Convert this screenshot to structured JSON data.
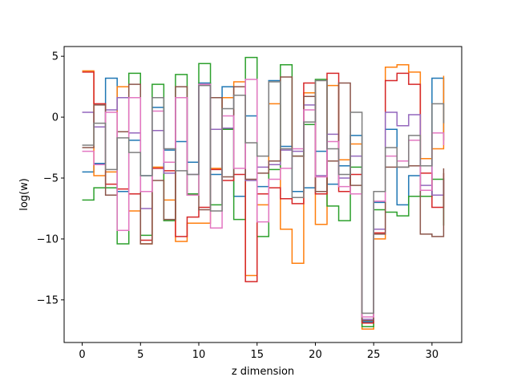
{
  "chart_data": {
    "type": "line",
    "step": "post",
    "title": "",
    "xlabel": "z dimension",
    "ylabel": "log(w)",
    "xlim": [
      -1.55,
      32.55
    ],
    "ylim": [
      -18.5,
      5.8
    ],
    "xticks": [
      0,
      5,
      10,
      15,
      20,
      25,
      30
    ],
    "yticks": [
      -15,
      -10,
      -5,
      0,
      5
    ],
    "grid": false,
    "legend": "none",
    "x": [
      0,
      1,
      2,
      3,
      4,
      5,
      6,
      7,
      8,
      9,
      10,
      11,
      12,
      13,
      14,
      15,
      16,
      17,
      18,
      19,
      20,
      21,
      22,
      23,
      24,
      25,
      26,
      27,
      28,
      29,
      30,
      31
    ],
    "series": [
      {
        "color": "#1f77b4",
        "values": [
          -4.5,
          -3.8,
          3.2,
          -6.1,
          -1.9,
          -4.8,
          0.8,
          -2.7,
          -2.0,
          -3.7,
          2.8,
          -4.7,
          2.5,
          -6.5,
          0.1,
          -5.7,
          3.0,
          -2.4,
          -6.1,
          -5.8,
          -2.8,
          -5.5,
          -4.0,
          -1.5,
          -16.8,
          -7.0,
          -1.0,
          -7.2,
          -4.8,
          -6.5,
          3.2,
          -1.9
        ]
      },
      {
        "color": "#ff7f0e",
        "values": [
          3.8,
          -4.8,
          -4.5,
          2.5,
          -7.7,
          -10.4,
          -4.1,
          -6.8,
          -10.2,
          -8.7,
          -8.7,
          -4.2,
          1.6,
          2.9,
          -13.0,
          -7.2,
          1.1,
          -9.2,
          -12.0,
          2.0,
          -8.8,
          2.6,
          -3.5,
          -2.2,
          -17.4,
          -10.0,
          4.1,
          4.3,
          3.7,
          -3.4,
          -2.6,
          3.4
        ]
      },
      {
        "color": "#2ca02c",
        "values": [
          -6.8,
          -5.8,
          -5.8,
          -10.4,
          3.6,
          -9.7,
          2.7,
          -8.5,
          3.5,
          -6.3,
          4.4,
          -7.2,
          -1.0,
          -8.4,
          4.9,
          -9.8,
          -4.3,
          4.3,
          -3.2,
          -0.6,
          3.1,
          -7.3,
          -8.5,
          -4.1,
          -17.2,
          -7.6,
          -7.8,
          -8.1,
          -6.5,
          -6.5,
          -5.1,
          -8.9
        ]
      },
      {
        "color": "#d62728",
        "values": [
          3.7,
          1.1,
          -5.5,
          -5.9,
          -6.3,
          -10.1,
          -4.2,
          -4.4,
          -9.8,
          -8.2,
          -7.4,
          -4.3,
          -5.2,
          -4.7,
          -13.5,
          -6.3,
          -5.8,
          -6.7,
          -7.1,
          2.8,
          -6.3,
          3.6,
          -6.1,
          -4.7,
          -16.9,
          -9.5,
          3.0,
          3.6,
          2.7,
          -4.6,
          -7.4,
          -4.6
        ]
      },
      {
        "color": "#9467bd",
        "values": [
          0.4,
          -0.8,
          0.6,
          1.6,
          -1.3,
          -7.5,
          -1.1,
          -4.6,
          1.6,
          -4.7,
          2.7,
          -1.0,
          -0.9,
          1.8,
          -5.2,
          -4.1,
          -3.9,
          -2.7,
          -2.8,
          1.0,
          -4.8,
          -1.4,
          -5.0,
          -3.2,
          -16.6,
          -9.2,
          0.4,
          -0.7,
          0.2,
          -5.6,
          -6.4,
          -5.0
        ]
      },
      {
        "color": "#8c564b",
        "values": [
          -2.5,
          1.0,
          -6.4,
          -1.2,
          2.7,
          -10.4,
          -5.2,
          -8.4,
          2.5,
          -6.4,
          -7.6,
          1.6,
          -4.9,
          2.5,
          -5.1,
          -4.6,
          -3.6,
          3.3,
          -3.2,
          1.7,
          -6.1,
          -3.6,
          2.8,
          -5.6,
          -16.7,
          -9.6,
          -4.1,
          -4.1,
          -4.0,
          -9.6,
          -9.8,
          -4.2
        ]
      },
      {
        "color": "#e377c2",
        "values": [
          -2.8,
          -3.9,
          0.4,
          -9.3,
          1.6,
          -6.1,
          0.5,
          -3.7,
          1.6,
          -6.4,
          2.7,
          -9.1,
          0.1,
          -4.2,
          3.1,
          -8.6,
          -5.1,
          -4.2,
          -2.6,
          0.6,
          -4.9,
          -2.0,
          -5.7,
          -6.3,
          -16.4,
          -6.9,
          -3.2,
          -3.6,
          -1.9,
          -6.0,
          -1.3,
          -2.3
        ]
      },
      {
        "color": "#7f7f7f",
        "values": [
          -2.3,
          -0.5,
          -4.3,
          -1.7,
          -2.9,
          -4.8,
          1.6,
          -2.6,
          -4.4,
          -4.7,
          2.6,
          -7.7,
          0.7,
          1.8,
          -2.1,
          -3.2,
          2.9,
          -2.6,
          -6.6,
          -0.4,
          3.0,
          -2.6,
          -4.7,
          0.4,
          -16.1,
          -6.1,
          -2.5,
          -4.1,
          -1.5,
          -4.0,
          1.1,
          -0.5
        ]
      }
    ]
  }
}
